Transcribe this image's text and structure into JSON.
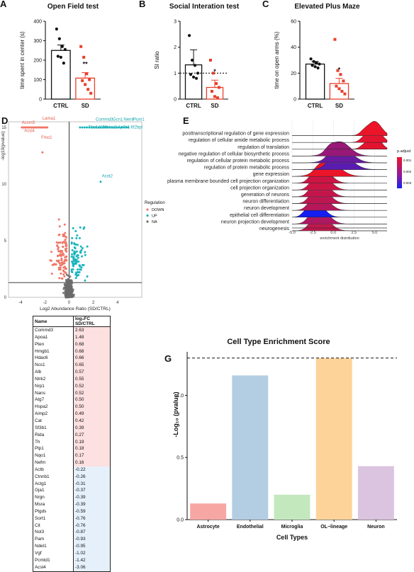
{
  "panels": {
    "A": {
      "letter": "A",
      "title": "Open Field test",
      "ylabel": "time spent in center (s)",
      "sig": "**"
    },
    "B": {
      "letter": "B",
      "title": "Social Interation test",
      "ylabel": "SI ratio",
      "sig": "*"
    },
    "C": {
      "letter": "C",
      "title": "Elevated Plus Maze",
      "ylabel": "time on open arms (%)",
      "sig": "*"
    },
    "D": {
      "letter": "D",
      "xlabel": "Log2 Abundance Ratio (SD/CTRL)",
      "ylabel": "-log10(pvalue)",
      "legend_title": "Regulation"
    },
    "E": {
      "letter": "E",
      "xlabel": "enrichment distribution",
      "legend_title": "p.adjust"
    },
    "F": {
      "letter": "F",
      "col_name": "Name",
      "col_fc": "log₂FC SD/CTRL"
    },
    "G": {
      "letter": "G",
      "ylabel": "-Log₁₀ (pvalue)"
    }
  },
  "table_rows": [
    {
      "name": "Commd3",
      "fc": "2.63",
      "dir": "up"
    },
    {
      "name": "Apoa1",
      "fc": "1.48",
      "dir": "up"
    },
    {
      "name": "Pten",
      "fc": "0.68",
      "dir": "up"
    },
    {
      "name": "Hmgb1",
      "fc": "0.68",
      "dir": "up"
    },
    {
      "name": "Hdac6",
      "fc": "0.66",
      "dir": "up"
    },
    {
      "name": "Ncs1",
      "fc": "0.65",
      "dir": "up"
    },
    {
      "name": "Alb",
      "fc": "0.57",
      "dir": "up"
    },
    {
      "name": "Ntrk2",
      "fc": "0.55",
      "dir": "up"
    },
    {
      "name": "Nrp1",
      "fc": "0.52",
      "dir": "up"
    },
    {
      "name": "Nans",
      "fc": "0.52",
      "dir": "up"
    },
    {
      "name": "Atg7",
      "fc": "0.50",
      "dir": "up"
    },
    {
      "name": "Hspa2",
      "fc": "0.50",
      "dir": "up"
    },
    {
      "name": "Aimp2",
      "fc": "0.49",
      "dir": "up"
    },
    {
      "name": "Cat",
      "fc": "0.42",
      "dir": "up"
    },
    {
      "name": "Sf3b1",
      "fc": "0.39",
      "dir": "up"
    },
    {
      "name": "Rida",
      "fc": "0.27",
      "dir": "up"
    },
    {
      "name": "Th",
      "fc": "0.19",
      "dir": "up"
    },
    {
      "name": "Plp1",
      "fc": "0.18",
      "dir": "up"
    },
    {
      "name": "Nqo1",
      "fc": "0.17",
      "dir": "up"
    },
    {
      "name": "Nefm",
      "fc": "0.16",
      "dir": "up"
    },
    {
      "name": "Actb",
      "fc": "-0.22",
      "dir": "down"
    },
    {
      "name": "Ctnnb1",
      "fc": "-0.26",
      "dir": "down"
    },
    {
      "name": "Actg1",
      "fc": "-0.31",
      "dir": "down"
    },
    {
      "name": "Gja1",
      "fc": "-0.37",
      "dir": "down"
    },
    {
      "name": "Nrgn",
      "fc": "-0.39",
      "dir": "down"
    },
    {
      "name": "Msra",
      "fc": "-0.39",
      "dir": "down"
    },
    {
      "name": "Ptgds",
      "fc": "-0.59",
      "dir": "down"
    },
    {
      "name": "Sort1",
      "fc": "-0.76",
      "dir": "down"
    },
    {
      "name": "Cit",
      "fc": "-0.76",
      "dir": "down"
    },
    {
      "name": "Nol3",
      "fc": "-0.87",
      "dir": "down"
    },
    {
      "name": "Pam",
      "fc": "-0.93",
      "dir": "down"
    },
    {
      "name": "Ndel1",
      "fc": "-0.95",
      "dir": "down"
    },
    {
      "name": "Vgf",
      "fc": "-1.02",
      "dir": "down"
    },
    {
      "name": "Pcmtd1",
      "fc": "-1.42",
      "dir": "down"
    },
    {
      "name": "Acsl4",
      "fc": "-3.06",
      "dir": "down"
    }
  ],
  "chart_data": [
    {
      "id": "A",
      "type": "bar",
      "title": "Open Field test",
      "ylabel": "time spent in center (s)",
      "categories": [
        "CTRL",
        "SD"
      ],
      "values": [
        250,
        108
      ],
      "errors": [
        28,
        28
      ],
      "ylim": [
        0,
        400
      ],
      "yticks": [
        0,
        100,
        200,
        300,
        400
      ],
      "points": [
        [
          360,
          310,
          270,
          255,
          220,
          215,
          185
        ],
        [
          270,
          215,
          130,
          100,
          95,
          75,
          50,
          30
        ]
      ],
      "significance": "**"
    },
    {
      "id": "B",
      "type": "bar",
      "title": "Social Interation test",
      "ylabel": "SI ratio",
      "categories": [
        "CTRL",
        "SD"
      ],
      "values": [
        1.32,
        0.45
      ],
      "errors": [
        0.58,
        0.28
      ],
      "ylim": [
        0,
        3
      ],
      "yticks": [
        0,
        1,
        2,
        3
      ],
      "points": [
        [
          2.45,
          1.5,
          1.3,
          1.0,
          0.95,
          0.85,
          0.8
        ],
        [
          1.5,
          1.0,
          0.6,
          0.45,
          0.3,
          0.1,
          0.05
        ]
      ],
      "significance": "*",
      "reference_line": 1
    },
    {
      "id": "C",
      "type": "bar",
      "title": "Elevated Plus Maze",
      "ylabel": "time on open arms (%)",
      "categories": [
        "CTRL",
        "SD"
      ],
      "values": [
        27,
        12
      ],
      "errors": [
        2,
        4
      ],
      "ylim": [
        0,
        60
      ],
      "yticks": [
        0,
        20,
        40,
        60
      ],
      "points": [
        [
          31,
          29,
          28,
          27,
          26,
          25,
          24
        ],
        [
          46,
          22,
          19,
          14,
          10,
          8,
          6,
          4
        ]
      ],
      "significance": "*"
    },
    {
      "id": "D",
      "type": "scatter",
      "xlabel": "Log2 Abundance Ratio (SD/CTRL)",
      "ylabel": "-log10(pvalue)",
      "xlim": [
        -5,
        6
      ],
      "ylim": [
        0,
        15.5
      ],
      "xticks": [
        -4,
        -2,
        0,
        2,
        4
      ],
      "yticks": [
        0,
        5,
        10,
        15
      ],
      "threshold": 1.3,
      "legend": {
        "title": "Regulation",
        "entries": [
          "DOWN",
          "UP",
          "NA"
        ]
      },
      "labels_down": [
        {
          "text": "Acsm3",
          "x": -3.9,
          "y": 15.3
        },
        {
          "text": "Lama1",
          "x": -2.2,
          "y": 15.7
        },
        {
          "text": "Acsl4",
          "x": -3.7,
          "y": 14.6
        },
        {
          "text": "Fmo1",
          "x": -2.3,
          "y": 14.0
        }
      ],
      "labels_up": [
        {
          "text": "Commd3",
          "x": 2.2,
          "y": 15.6
        },
        {
          "text": "Gcn1",
          "x": 3.6,
          "y": 15.6
        },
        {
          "text": "Nemf",
          "x": 4.5,
          "y": 15.6
        },
        {
          "text": "Pum1",
          "x": 5.3,
          "y": 15.6
        },
        {
          "text": "Tbc1d10a",
          "x": 1.6,
          "y": 14.9
        },
        {
          "text": "Mblac2",
          "x": 2.8,
          "y": 14.9
        },
        {
          "text": "Ap3b1",
          "x": 4.0,
          "y": 14.9
        },
        {
          "text": "Itf2bpl",
          "x": 5.1,
          "y": 14.9
        },
        {
          "text": "Acot2",
          "x": 2.7,
          "y": 10.6
        }
      ]
    },
    {
      "id": "E",
      "type": "ridgeline",
      "xlabel": "enrichment distribution",
      "xlim": [
        -5,
        6.5
      ],
      "xticks": [
        -5.0,
        -2.5,
        0.0,
        2.5,
        5.0
      ],
      "legend": {
        "title": "p.adjust",
        "ticks": [
          "0.001",
          "0.002",
          "0.003"
        ]
      },
      "terms": [
        {
          "name": "posttranscriptional regulation of gene expression",
          "center": 5.0,
          "width": 0.8,
          "padj": 0.0005
        },
        {
          "name": "regulation of cellular amide metabolic process",
          "center": 5.0,
          "width": 0.8,
          "padj": 0.0006
        },
        {
          "name": "regulation of translation",
          "center": 5.0,
          "width": 0.7,
          "padj": 0.0006
        },
        {
          "name": "negative regulation of cellular biosynthetic process",
          "center": 0.8,
          "width": 1.2,
          "padj": 0.0016
        },
        {
          "name": "regulation of cellular protein metabolic process",
          "center": 1.0,
          "width": 1.3,
          "padj": 0.0022
        },
        {
          "name": "regulation of protein metabolic process",
          "center": 1.0,
          "width": 1.3,
          "padj": 0.0024
        },
        {
          "name": "gene expression",
          "center": -0.5,
          "width": 1.3,
          "padj": 0.0005
        },
        {
          "name": "plasma membrane bounded cell projection organization",
          "center": -1.3,
          "width": 1.0,
          "padj": 0.0009
        },
        {
          "name": "cell projection organization",
          "center": -1.3,
          "width": 1.0,
          "padj": 0.0009
        },
        {
          "name": "generation of neurons",
          "center": -1.4,
          "width": 1.0,
          "padj": 0.001
        },
        {
          "name": "neuron differentiation",
          "center": -1.4,
          "width": 1.0,
          "padj": 0.0011
        },
        {
          "name": "neuron development",
          "center": -1.5,
          "width": 1.0,
          "padj": 0.0012
        },
        {
          "name": "epithelial cell differentiation",
          "center": -2.0,
          "width": 0.9,
          "padj": 0.0033
        },
        {
          "name": "neuron projection development",
          "center": -1.5,
          "width": 1.0,
          "padj": 0.0013
        },
        {
          "name": "neurogenesis",
          "center": -1.4,
          "width": 1.0,
          "padj": 0.001
        }
      ]
    },
    {
      "id": "G",
      "type": "bar",
      "title": "Cell Type Enrichment Score",
      "xlabel": "Cell Types",
      "ylabel": "-Log₁₀ (pvalue)",
      "categories": [
        "Astrocyte",
        "Endothelial",
        "Microglia",
        "OL−lineage",
        "Neuron"
      ],
      "values": [
        0.13,
        1.16,
        0.2,
        1.3,
        0.43
      ],
      "colors": [
        "#f6a7a3",
        "#b3cde3",
        "#c3e8be",
        "#fdd39a",
        "#dbc4e0"
      ],
      "ylim": [
        0,
        1.35
      ],
      "yticks": [
        0.0,
        0.5,
        1.0
      ],
      "reference_line": 1.3
    }
  ]
}
